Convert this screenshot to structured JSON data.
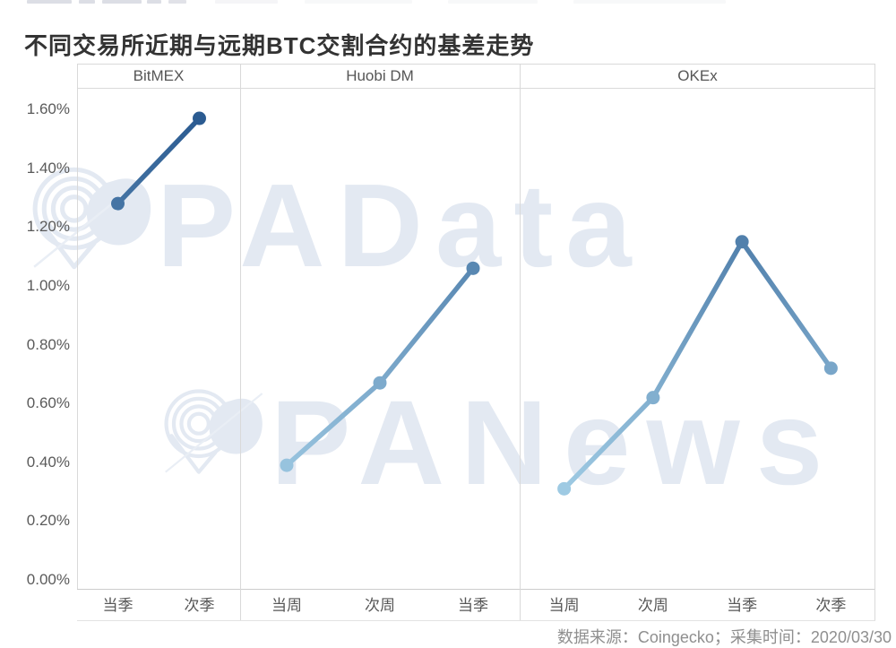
{
  "page": {
    "title": "不同交易所近期与远期BTC交割合约的基差走势",
    "footer_note": "数据来源：Coingecko；采集时间：2020/03/30",
    "watermarks": {
      "primary": "PAData",
      "secondary": "PANews"
    }
  },
  "chart_data": {
    "type": "line",
    "title": "不同交易所近期与远期BTC交割合约的基差走势",
    "unit": "%",
    "y_axis": {
      "ticks": [
        "1.60%",
        "1.40%",
        "1.20%",
        "1.00%",
        "0.80%",
        "0.60%",
        "0.40%",
        "0.20%",
        "0.00%"
      ],
      "tick_values": [
        1.6,
        1.4,
        1.2,
        1.0,
        0.8,
        0.6,
        0.4,
        0.2,
        0.0
      ],
      "min": 0.0,
      "max": 1.6,
      "grid": "off"
    },
    "panels": [
      {
        "exchange": "BitMEX",
        "categories": [
          "当季",
          "次季"
        ],
        "values": [
          1.28,
          1.57
        ]
      },
      {
        "exchange": "Huobi DM",
        "categories": [
          "当周",
          "次周",
          "当季"
        ],
        "values": [
          0.39,
          0.67,
          1.06
        ]
      },
      {
        "exchange": "OKEx",
        "categories": [
          "当周",
          "次周",
          "当季",
          "次季"
        ],
        "values": [
          0.31,
          0.62,
          1.15,
          0.72
        ]
      }
    ],
    "legend": "none",
    "source": "Coingecko",
    "collected": "2020/03/30",
    "style": {
      "color_low_value": "#9fcbe4",
      "color_high_value": "#28588f",
      "color_domain_pct": [
        0.3,
        1.6
      ],
      "axis_line_color": "#d9d9d9",
      "label_color": "#565656",
      "watermark_color": "#e3e9f2"
    }
  }
}
